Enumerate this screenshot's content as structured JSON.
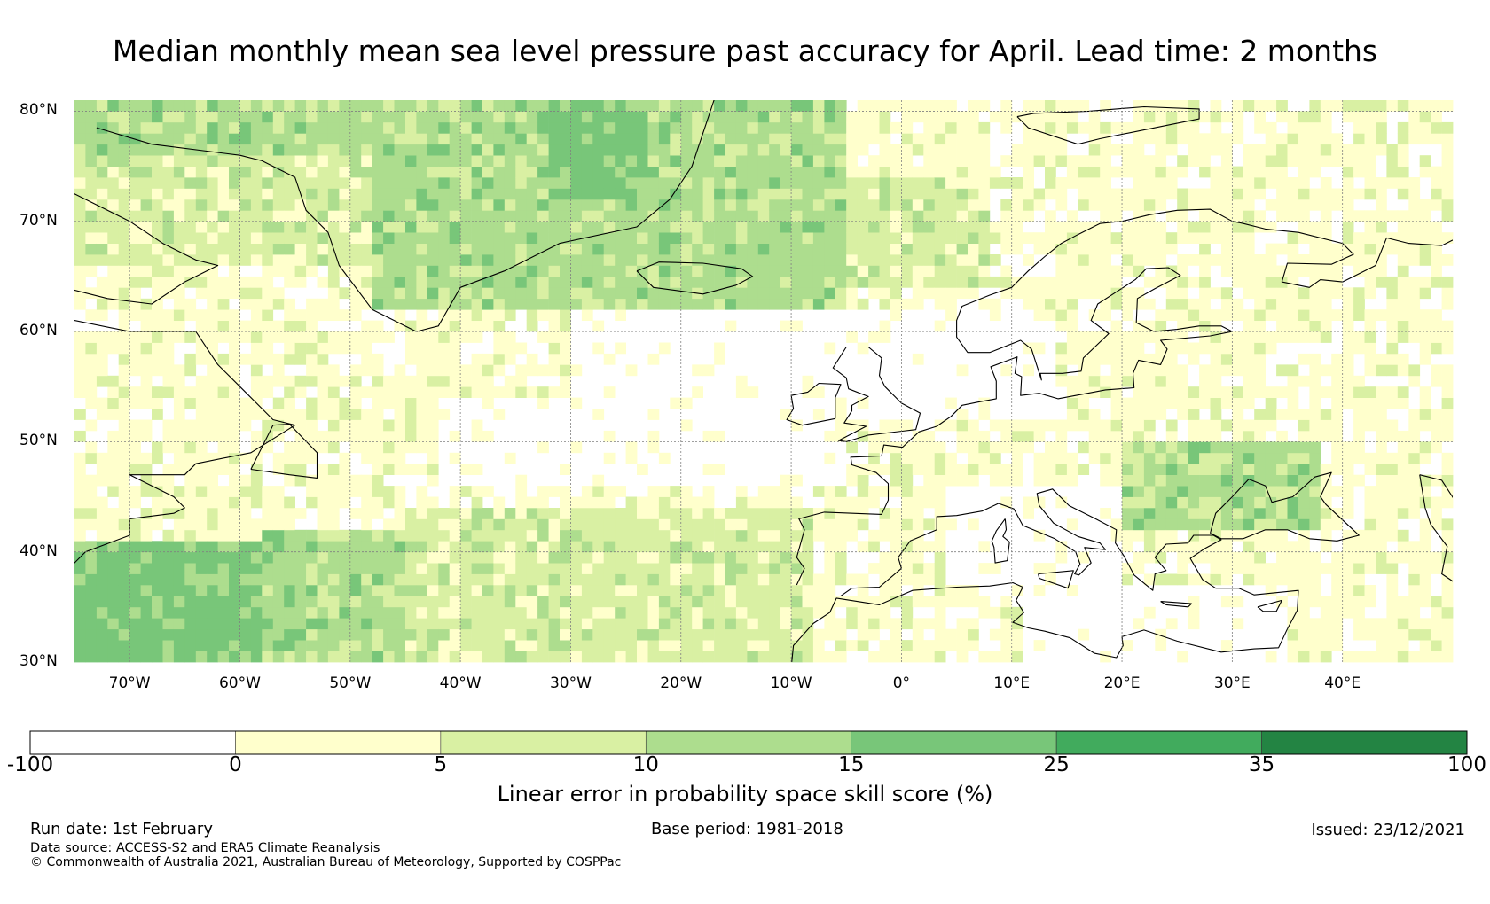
{
  "title": "Median monthly mean sea level pressure past accuracy for April. Lead time: 2 months",
  "map": {
    "region": "North Atlantic and Europe",
    "lon_range": [
      -75,
      50
    ],
    "lat_range": [
      30,
      81
    ],
    "lat_ticks": [
      {
        "value": 80,
        "label": "80°N"
      },
      {
        "value": 70,
        "label": "70°N"
      },
      {
        "value": 60,
        "label": "60°N"
      },
      {
        "value": 50,
        "label": "50°N"
      },
      {
        "value": 40,
        "label": "40°N"
      },
      {
        "value": 30,
        "label": "30°N"
      }
    ],
    "lon_ticks": [
      {
        "value": -70,
        "label": "70°W"
      },
      {
        "value": -60,
        "label": "60°W"
      },
      {
        "value": -50,
        "label": "50°W"
      },
      {
        "value": -40,
        "label": "40°W"
      },
      {
        "value": -30,
        "label": "30°W"
      },
      {
        "value": -20,
        "label": "20°W"
      },
      {
        "value": -10,
        "label": "10°W"
      },
      {
        "value": 0,
        "label": "0°"
      },
      {
        "value": 10,
        "label": "10°E"
      },
      {
        "value": 20,
        "label": "20°E"
      },
      {
        "value": 30,
        "label": "30°E"
      },
      {
        "value": 40,
        "label": "40°E"
      }
    ],
    "gridlines": true
  },
  "colorbar": {
    "title": "Linear error in probability space skill score (%)",
    "boundaries": [
      "-100",
      "0",
      "5",
      "10",
      "15",
      "25",
      "35",
      "100"
    ],
    "colors": [
      "#ffffff",
      "#ffffcc",
      "#d9f0a3",
      "#addd8e",
      "#78c679",
      "#41ab5d",
      "#238443"
    ]
  },
  "colors": {
    "coastline": "#000000",
    "grid": "#808080",
    "land_outline": "#000000"
  },
  "footer": {
    "run_date": "Run date: 1st February",
    "base_period": "Base period: 1981-2018",
    "issued": "Issued: 23/12/2021",
    "data_source": "Data source: ACCESS-S2 and ERA5 Climate Reanalysis",
    "copyright": "© Commonwealth of Australia 2021, Australian Bureau of Meteorology, Supported by COSPPac"
  }
}
